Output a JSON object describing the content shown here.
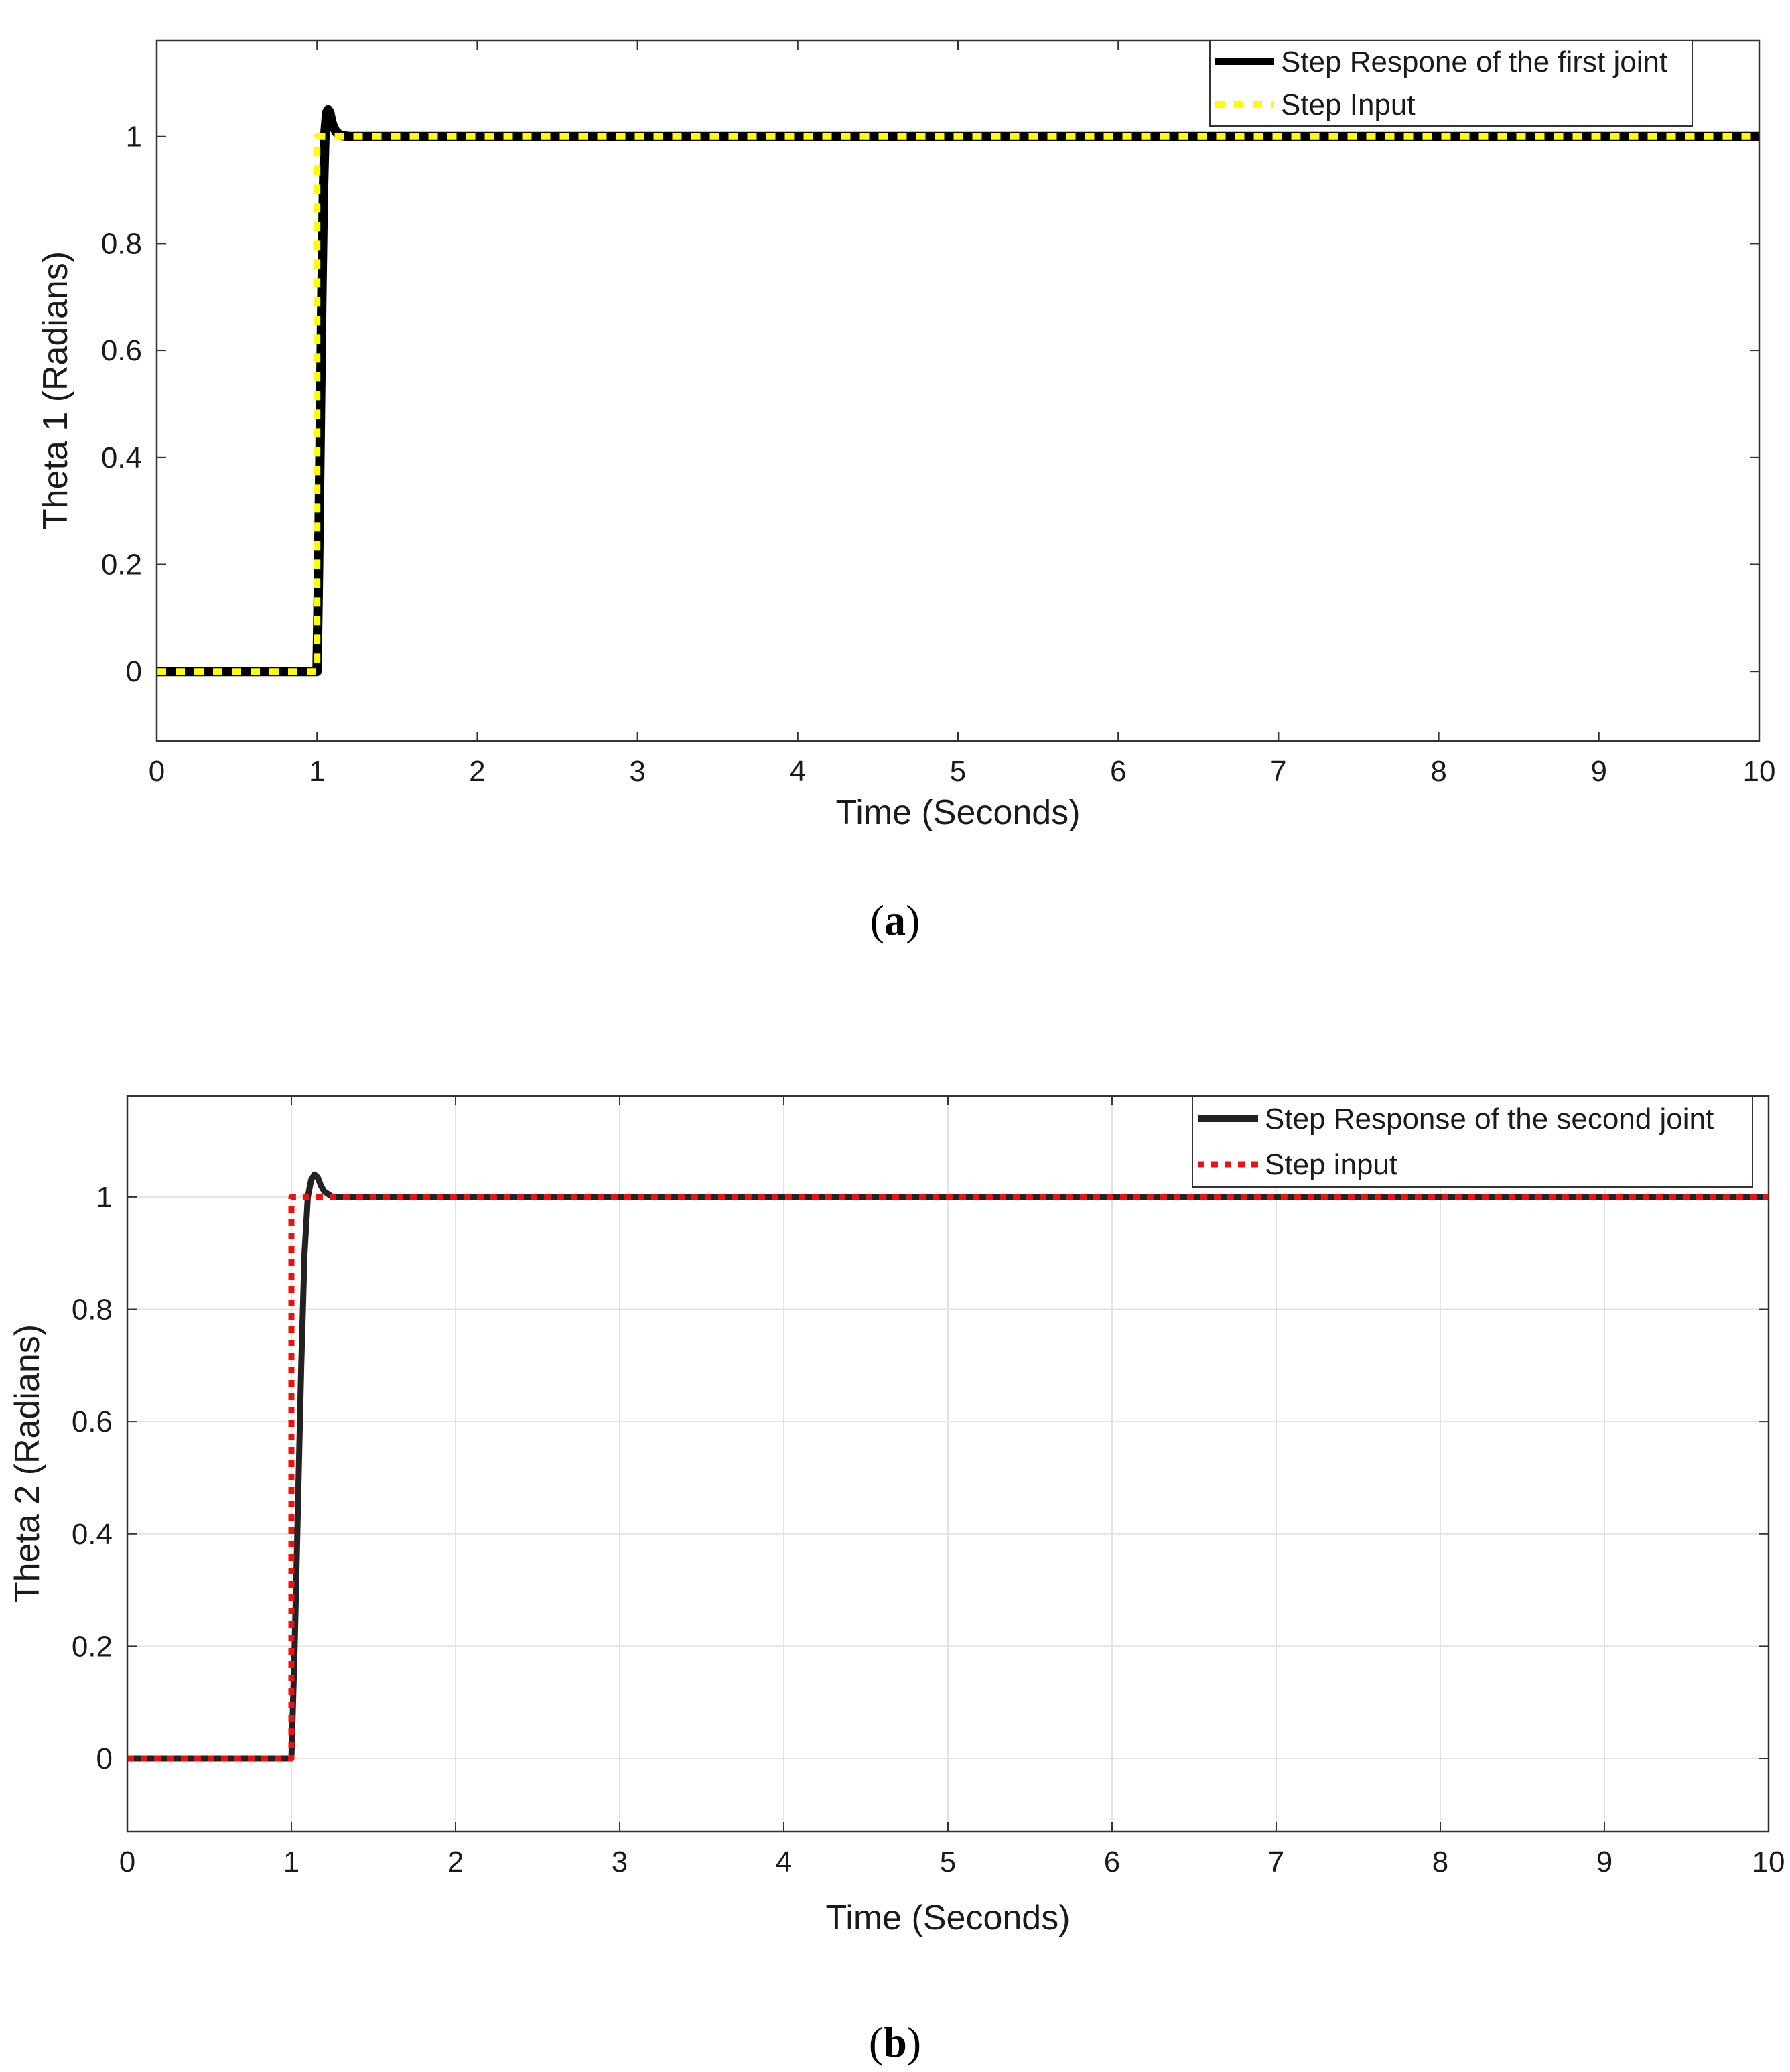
{
  "chart_data": [
    {
      "type": "line",
      "caption": "(a)",
      "caption_letter": "a",
      "xlabel": "Time (Seconds)",
      "ylabel": "Theta 1 (Radians)",
      "xlim": [
        0,
        10
      ],
      "ylim": [
        -0.13,
        1.18
      ],
      "x_ticks": [
        0,
        1,
        2,
        3,
        4,
        5,
        6,
        7,
        8,
        9,
        10
      ],
      "y_ticks": [
        0,
        0.2,
        0.4,
        0.6,
        0.8,
        1
      ],
      "grid": false,
      "legend_position": "top-right",
      "series": [
        {
          "name": "Step Respone of the first joint",
          "color": "#000000",
          "style": "solid",
          "x": [
            0,
            1.0,
            1.01,
            1.02,
            1.03,
            1.04,
            1.05,
            1.06,
            1.07,
            1.08,
            1.09,
            1.1,
            1.12,
            1.15,
            1.2,
            1.3,
            10
          ],
          "y": [
            0,
            0,
            0.2,
            0.45,
            0.7,
            0.9,
            1.01,
            1.045,
            1.05,
            1.045,
            1.03,
            1.02,
            1.008,
            1.002,
            1.0,
            1.0,
            1.0
          ]
        },
        {
          "name": "Step Input",
          "color": "#ffff00",
          "style": "dashed",
          "x": [
            0,
            1,
            1,
            10
          ],
          "y": [
            0,
            0,
            1,
            1
          ]
        }
      ]
    },
    {
      "type": "line",
      "caption": "(b)",
      "caption_letter": "b",
      "xlabel": "Time (Seconds)",
      "ylabel": "Theta 2 (Radians)",
      "xlim": [
        0,
        10
      ],
      "ylim": [
        -0.13,
        1.18
      ],
      "x_ticks": [
        0,
        1,
        2,
        3,
        4,
        5,
        6,
        7,
        8,
        9,
        10
      ],
      "y_ticks": [
        0,
        0.2,
        0.4,
        0.6,
        0.8,
        1
      ],
      "grid": true,
      "legend_position": "top-right",
      "series": [
        {
          "name": "Step Response of the second joint",
          "color": "#222222",
          "style": "solid",
          "x": [
            0,
            1.0,
            1.02,
            1.04,
            1.06,
            1.08,
            1.1,
            1.12,
            1.14,
            1.16,
            1.18,
            1.2,
            1.25,
            1.3,
            1.4,
            10
          ],
          "y": [
            0,
            0,
            0.2,
            0.45,
            0.7,
            0.9,
            1.0,
            1.03,
            1.04,
            1.035,
            1.02,
            1.01,
            1.0,
            1.0,
            1.0,
            1.0
          ]
        },
        {
          "name": "Step input",
          "color": "#ee1111",
          "style": "dotted",
          "x": [
            0,
            1,
            1,
            10
          ],
          "y": [
            0,
            0,
            1,
            1
          ]
        }
      ]
    }
  ]
}
